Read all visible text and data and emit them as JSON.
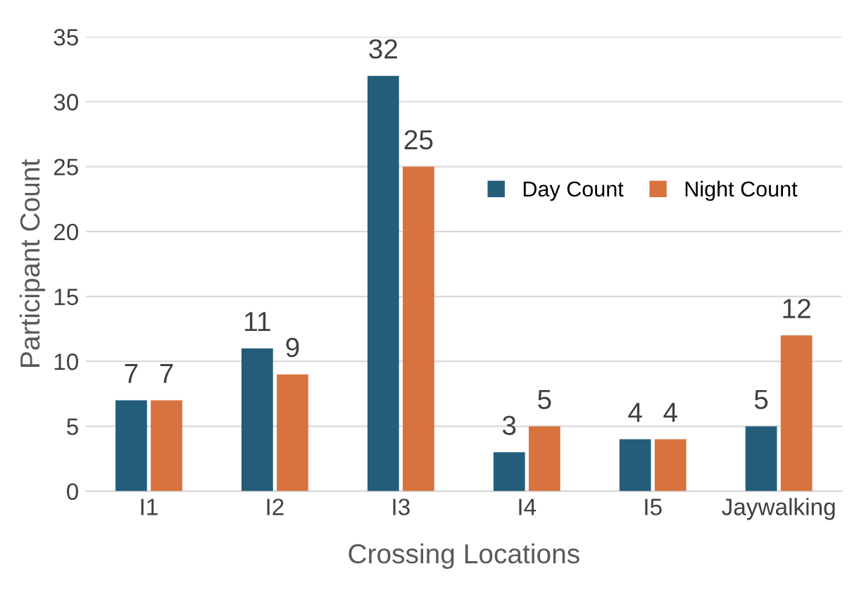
{
  "chart_data": {
    "type": "bar",
    "xlabel": "Crossing Locations",
    "ylabel": "Participant Count",
    "categories": [
      "I1",
      "I2",
      "I3",
      "I4",
      "I5",
      "Jaywalking"
    ],
    "series": [
      {
        "name": "Day Count",
        "color": "#245d7a",
        "values": [
          7,
          11,
          32,
          3,
          4,
          5
        ]
      },
      {
        "name": "Night Count",
        "color": "#d8733f",
        "values": [
          7,
          9,
          25,
          5,
          4,
          12
        ]
      }
    ],
    "ylim": [
      0,
      35
    ],
    "yticks": [
      0,
      5,
      10,
      15,
      20,
      25,
      30,
      35
    ],
    "grid": "y",
    "legend": "top right",
    "data_labels": true
  }
}
